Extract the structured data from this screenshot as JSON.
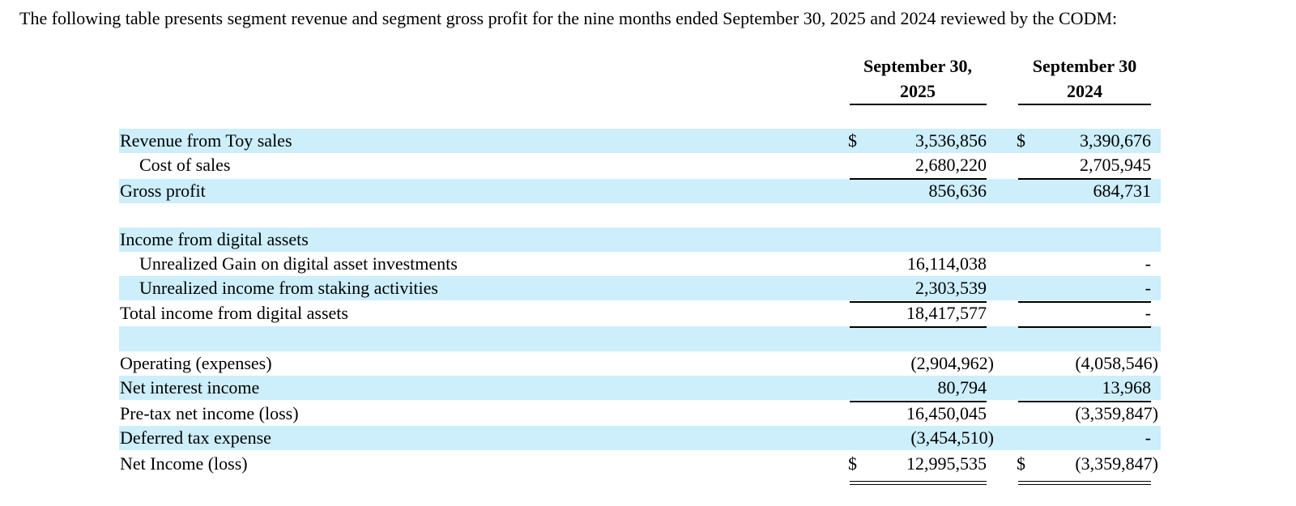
{
  "intro": "The following table presents segment revenue and segment gross profit for the nine months ended September 30, 2025 and 2024 reviewed by the CODM:",
  "table": {
    "columns": [
      {
        "line1": "September 30,",
        "line2": "2025"
      },
      {
        "line1": "September 30",
        "line2": "2024"
      }
    ],
    "rows": [
      {
        "label": "Revenue from Toy sales",
        "currency": [
          "$",
          "$"
        ],
        "values": [
          "3,536,856",
          "3,390,676"
        ]
      },
      {
        "label": "Cost of sales",
        "values": [
          "2,680,220",
          "2,705,945"
        ]
      },
      {
        "label": "Gross profit",
        "values": [
          "856,636",
          "684,731"
        ]
      },
      {
        "label": "Income from digital assets"
      },
      {
        "label": "Unrealized Gain on digital asset investments",
        "values": [
          "16,114,038",
          "-"
        ]
      },
      {
        "label": "Unrealized income from staking activities",
        "values": [
          "2,303,539",
          "-"
        ]
      },
      {
        "label": "Total income from digital assets",
        "values": [
          "18,417,577",
          "-"
        ]
      },
      {
        "label": "Operating (expenses)",
        "values": [
          "(2,904,962)",
          "(4,058,546)"
        ]
      },
      {
        "label": "Net interest income",
        "values": [
          "80,794",
          "13,968"
        ]
      },
      {
        "label": "Pre-tax net income (loss)",
        "values": [
          "16,450,045",
          "(3,359,847)"
        ]
      },
      {
        "label": "Deferred tax expense",
        "values": [
          "(3,454,510)",
          "-"
        ]
      },
      {
        "label": "Net Income (loss)",
        "currency": [
          "$",
          "$"
        ],
        "values": [
          "12,995,535",
          "(3,359,847)"
        ]
      }
    ]
  }
}
